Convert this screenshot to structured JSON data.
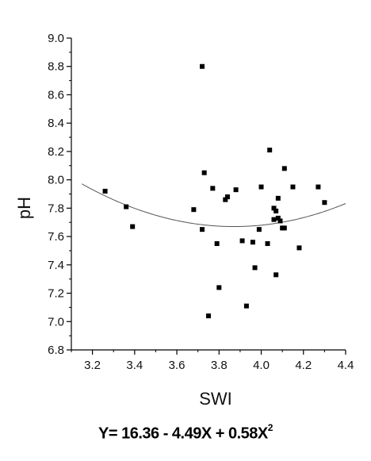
{
  "chart_data": {
    "type": "scatter",
    "xlabel": "SWI",
    "ylabel": "pH",
    "xlim": [
      3.1,
      4.4
    ],
    "ylim": [
      6.8,
      9.0
    ],
    "x_ticks": [
      "3.2",
      "3.4",
      "3.6",
      "3.8",
      "4.0",
      "4.2",
      "4.4"
    ],
    "y_ticks": [
      "6.8",
      "7.0",
      "7.2",
      "7.4",
      "7.6",
      "7.8",
      "8.0",
      "8.2",
      "8.4",
      "8.6",
      "8.8",
      "9.0"
    ],
    "points": [
      {
        "x": 3.26,
        "y": 7.92
      },
      {
        "x": 3.36,
        "y": 7.81
      },
      {
        "x": 3.39,
        "y": 7.67
      },
      {
        "x": 3.68,
        "y": 7.79
      },
      {
        "x": 3.72,
        "y": 8.8
      },
      {
        "x": 3.73,
        "y": 8.05
      },
      {
        "x": 3.72,
        "y": 7.65
      },
      {
        "x": 3.75,
        "y": 7.04
      },
      {
        "x": 3.77,
        "y": 7.94
      },
      {
        "x": 3.79,
        "y": 7.55
      },
      {
        "x": 3.8,
        "y": 7.24
      },
      {
        "x": 3.83,
        "y": 7.86
      },
      {
        "x": 3.84,
        "y": 7.88
      },
      {
        "x": 3.88,
        "y": 7.93
      },
      {
        "x": 3.91,
        "y": 7.57
      },
      {
        "x": 3.93,
        "y": 7.11
      },
      {
        "x": 3.96,
        "y": 7.56
      },
      {
        "x": 3.97,
        "y": 7.38
      },
      {
        "x": 3.99,
        "y": 7.65
      },
      {
        "x": 4.0,
        "y": 7.95
      },
      {
        "x": 4.03,
        "y": 7.55
      },
      {
        "x": 4.04,
        "y": 8.21
      },
      {
        "x": 4.06,
        "y": 7.8
      },
      {
        "x": 4.06,
        "y": 7.72
      },
      {
        "x": 4.07,
        "y": 7.33
      },
      {
        "x": 4.07,
        "y": 7.78
      },
      {
        "x": 4.08,
        "y": 7.73
      },
      {
        "x": 4.08,
        "y": 7.87
      },
      {
        "x": 4.09,
        "y": 7.71
      },
      {
        "x": 4.1,
        "y": 7.66
      },
      {
        "x": 4.11,
        "y": 7.66
      },
      {
        "x": 4.11,
        "y": 8.08
      },
      {
        "x": 4.15,
        "y": 7.95
      },
      {
        "x": 4.18,
        "y": 7.52
      },
      {
        "x": 4.27,
        "y": 7.95
      },
      {
        "x": 4.3,
        "y": 7.84
      }
    ],
    "fit": {
      "type": "quadratic",
      "a": 16.36,
      "b": -4.49,
      "c": 0.58,
      "x_range": [
        3.15,
        4.4
      ]
    },
    "equation": {
      "main": "Y= 16.36 - 4.49X + 0.58X",
      "superscript": "2"
    }
  }
}
